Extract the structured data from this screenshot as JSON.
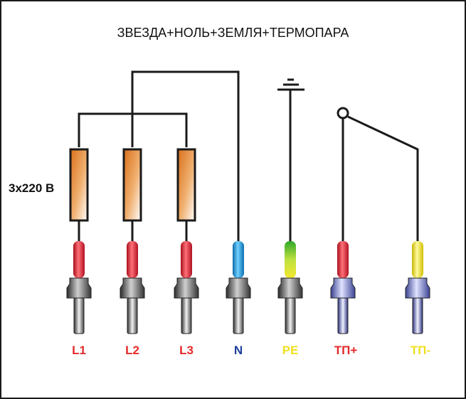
{
  "title": "ЗВЕЗДА+НОЛЬ+ЗЕМЛЯ+ТЕРМОПАРА",
  "voltage_label": "3x220 В",
  "terminals": [
    {
      "label": "L1",
      "label_color": "#e32a2a",
      "wire": "red"
    },
    {
      "label": "L2",
      "label_color": "#e32a2a",
      "wire": "red"
    },
    {
      "label": "L3",
      "label_color": "#e32a2a",
      "wire": "red"
    },
    {
      "label": "N",
      "label_color": "#1c3f9a",
      "wire": "blue"
    },
    {
      "label": "PE",
      "label_color": "#f0e020",
      "wire": "yellow-green"
    },
    {
      "label": "ТП+",
      "label_color": "#e32a2a",
      "wire": "red"
    },
    {
      "label": "ТП-",
      "label_color": "#f0e020",
      "wire": "yellow"
    }
  ],
  "colors": {
    "line": "#1a1a1a",
    "heater_fill": "#e08a2a",
    "red_sleeve": "#e0202a",
    "blue_sleeve": "#1a9ad8",
    "green_sleeve": "#3db02a",
    "yellow_sleeve": "#f0e030",
    "connector_gray": "#555555",
    "connector_blue": "#7a82c8"
  }
}
